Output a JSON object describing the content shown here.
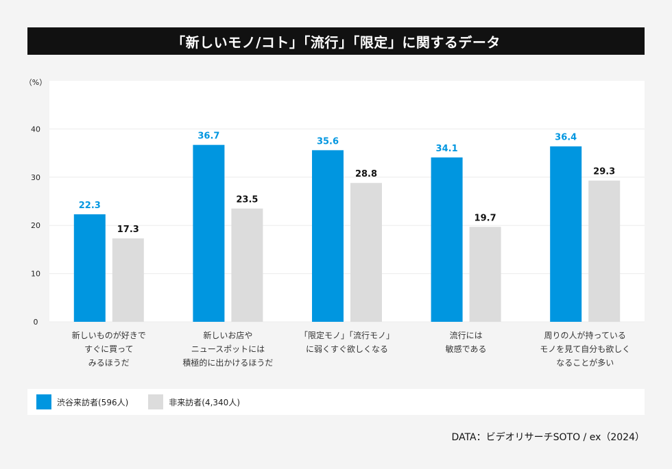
{
  "title": "「新しいモノ/コト」「流行」「限定」に関するデータ",
  "source": "DATA：ビデオリサーチSOTO / ex（2024）",
  "colors": {
    "visitor": "#0096e0",
    "nonvisitor": "#dcdcdc",
    "visitor_label": "#0096e0",
    "nonvisitor_label": "#111111"
  },
  "legend": [
    {
      "label": "渋谷来訪者(596人)",
      "color": "#0096e0"
    },
    {
      "label": "非来訪者(4,340人)",
      "color": "#dcdcdc"
    }
  ],
  "chart_data": {
    "type": "bar",
    "ylabel": "（%）",
    "ylim": [
      0,
      50
    ],
    "yticks": [
      0,
      10,
      20,
      30,
      40
    ],
    "categories": [
      [
        "新しいものが好きで",
        "すぐに買って",
        "みるほうだ"
      ],
      [
        "新しいお店や",
        "ニュースポットには",
        "積極的に出かけるほうだ"
      ],
      [
        "「限定モノ」「流行モノ」",
        "に弱くすぐ欲しくなる"
      ],
      [
        "流行には",
        "敏感である"
      ],
      [
        "周りの人が持っている",
        "モノを見て自分も欲しく",
        "なることが多い"
      ]
    ],
    "series": [
      {
        "name": "渋谷来訪者(596人)",
        "values": [
          22.3,
          36.7,
          35.6,
          34.1,
          36.4
        ]
      },
      {
        "name": "非来訪者(4,340人)",
        "values": [
          17.3,
          23.5,
          28.8,
          19.7,
          29.3
        ]
      }
    ],
    "legend_position": "bottom",
    "grid": true
  }
}
